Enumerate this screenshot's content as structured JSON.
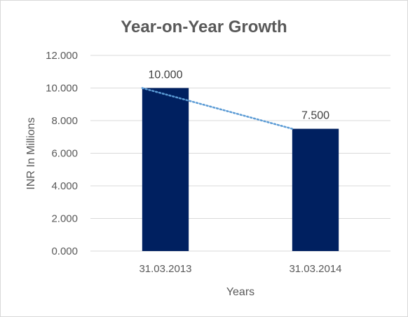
{
  "chart_data": {
    "type": "bar",
    "title": "Year-on-Year Growth",
    "xlabel": "Years",
    "ylabel": "INR In Millions",
    "categories": [
      "31.03.2013",
      "31.03.2014"
    ],
    "values": [
      10.0,
      7.5
    ],
    "value_labels": [
      "10.000",
      "7.500"
    ],
    "ylim": [
      0,
      12
    ],
    "yticks": [
      0,
      2,
      4,
      6,
      8,
      10,
      12
    ],
    "ytick_labels": [
      "0.000",
      "2.000",
      "4.000",
      "6.000",
      "8.000",
      "10.000",
      "12.000"
    ],
    "grid": true,
    "legend": "none",
    "trendline": {
      "type": "linear",
      "style": "dotted",
      "color": "#5b9bd5"
    },
    "colors": {
      "bar": "#002060",
      "grid": "#d9d9d9",
      "text": "#595959"
    }
  }
}
